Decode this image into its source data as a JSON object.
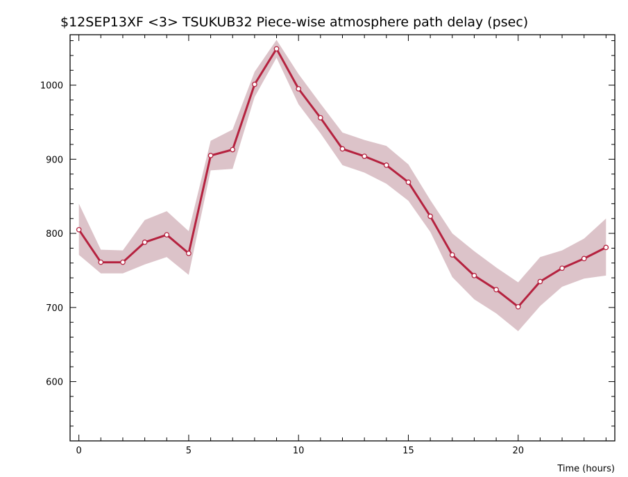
{
  "chart_data": {
    "type": "line",
    "title": "$12SEP13XF <3>  TSUKUB32  Piece-wise atmosphere path delay (psec)",
    "xlabel": "Time (hours)",
    "ylabel": "",
    "xlim": [
      -0.4,
      24.4
    ],
    "ylim": [
      520,
      1068
    ],
    "x_ticks": [
      0,
      5,
      10,
      15,
      20
    ],
    "y_ticks": [
      600,
      700,
      800,
      900,
      1000
    ],
    "grid": false,
    "legend": "none",
    "colors": {
      "line": "#b5223f",
      "band": "#dcc3c9",
      "marker_fill": "#ffffff",
      "axis": "#000000"
    },
    "series": [
      {
        "x": [
          0,
          1,
          2,
          3,
          4,
          5,
          6,
          7,
          8,
          9,
          10,
          11,
          12,
          13,
          14,
          15,
          16,
          17,
          18,
          19,
          20,
          21,
          22,
          23,
          24
        ],
        "values": [
          805,
          761,
          761,
          788,
          798,
          773,
          905,
          913,
          1001,
          1049,
          995,
          956,
          914,
          904,
          892,
          869,
          823,
          771,
          743,
          724,
          701,
          735,
          753,
          766,
          781
        ],
        "upper": [
          840,
          778,
          777,
          818,
          830,
          803,
          925,
          940,
          1018,
          1061,
          1015,
          975,
          936,
          926,
          918,
          893,
          845,
          800,
          776,
          754,
          734,
          768,
          777,
          793,
          820
        ],
        "lower": [
          771,
          746,
          746,
          758,
          768,
          744,
          885,
          887,
          984,
          1037,
          974,
          935,
          892,
          882,
          867,
          844,
          802,
          741,
          711,
          692,
          668,
          702,
          728,
          739,
          743
        ]
      }
    ]
  }
}
